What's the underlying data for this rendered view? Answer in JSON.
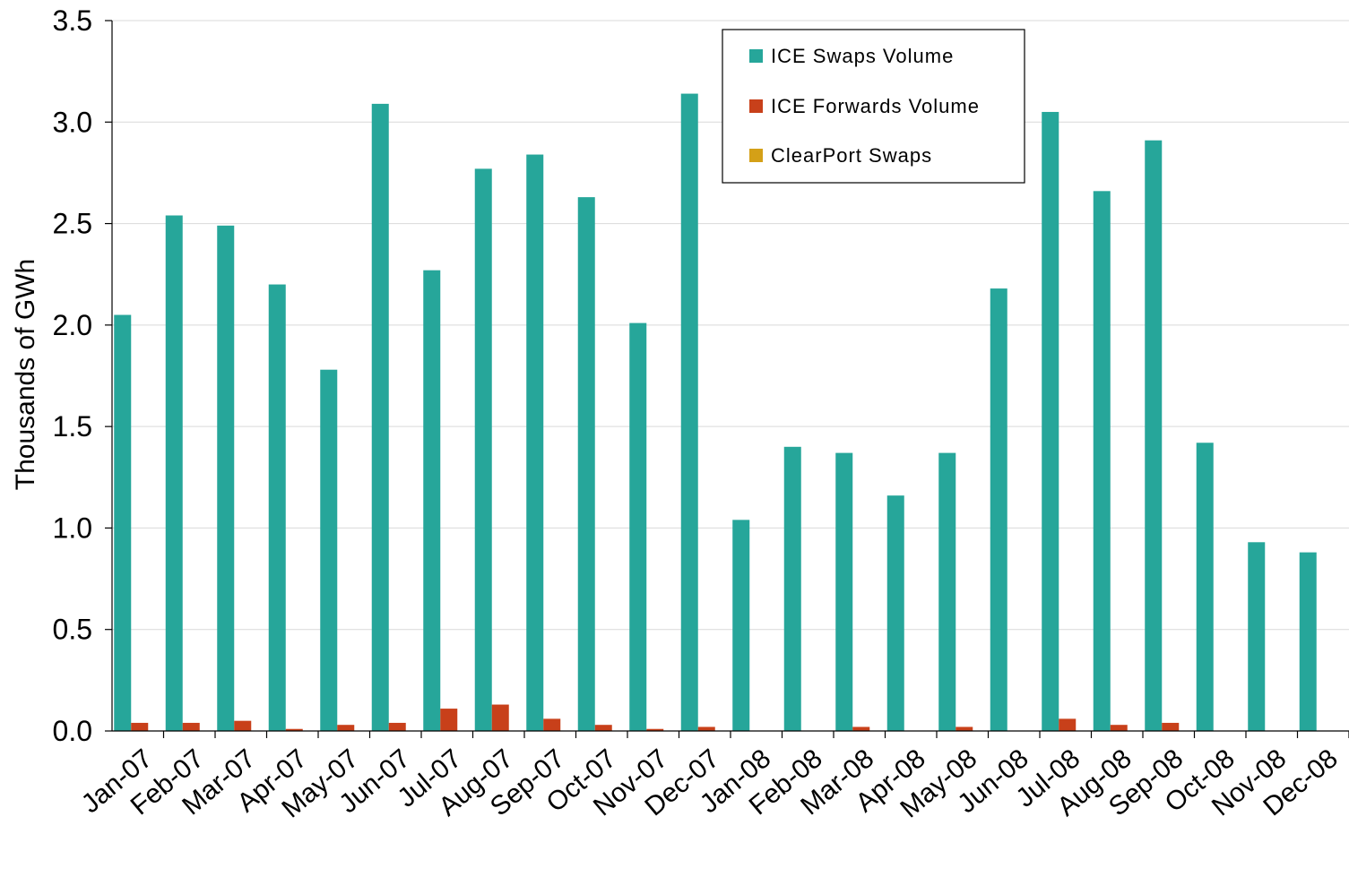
{
  "chart_data": {
    "type": "bar",
    "ylabel": "Thousands of GWh",
    "xlabel": "",
    "ylim": [
      0,
      3.5
    ],
    "yticks": [
      "0.0",
      "0.5",
      "1.0",
      "1.5",
      "2.0",
      "2.5",
      "3.0",
      "3.5"
    ],
    "grid": "horizontal",
    "legend_position": "top-center-right",
    "categories": [
      "Jan-07",
      "Feb-07",
      "Mar-07",
      "Apr-07",
      "May-07",
      "Jun-07",
      "Jul-07",
      "Aug-07",
      "Sep-07",
      "Oct-07",
      "Nov-07",
      "Dec-07",
      "Jan-08",
      "Feb-08",
      "Mar-08",
      "Apr-08",
      "May-08",
      "Jun-08",
      "Jul-08",
      "Aug-08",
      "Sep-08",
      "Oct-08",
      "Nov-08",
      "Dec-08"
    ],
    "series": [
      {
        "name": "ICE Swaps Volume",
        "color": "#26A69A",
        "values": [
          2.05,
          2.54,
          2.49,
          2.2,
          1.78,
          3.09,
          2.27,
          2.77,
          2.84,
          2.63,
          2.01,
          3.14,
          1.04,
          1.4,
          1.37,
          1.16,
          1.37,
          2.18,
          3.05,
          2.66,
          2.91,
          1.42,
          0.93,
          0.88
        ]
      },
      {
        "name": "ICE Forwards Volume",
        "color": "#C8401A",
        "values": [
          0.04,
          0.04,
          0.05,
          0.01,
          0.03,
          0.04,
          0.11,
          0.13,
          0.06,
          0.03,
          0.01,
          0.02,
          0.0,
          0.0,
          0.02,
          0.0,
          0.02,
          0.0,
          0.06,
          0.03,
          0.04,
          0.0,
          0.0,
          0.0
        ]
      },
      {
        "name": "ClearPort Swaps",
        "color": "#D4A017",
        "values": [
          0,
          0,
          0,
          0,
          0,
          0,
          0,
          0,
          0,
          0,
          0,
          0,
          0,
          0,
          0,
          0,
          0,
          0,
          0,
          0,
          0,
          0,
          0,
          0
        ]
      }
    ]
  }
}
